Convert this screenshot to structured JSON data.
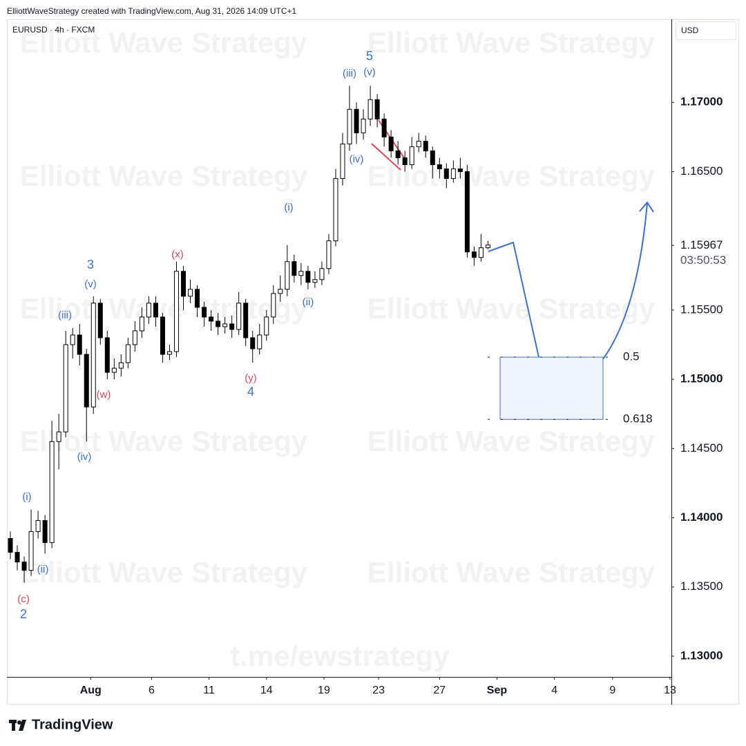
{
  "header": {
    "text": "ElliottWaveStrategy created with TradingView.com, Aug 31, 2026 14:09 UTC+1"
  },
  "footer": {
    "brand": "TradingView"
  },
  "chart_data": {
    "type": "candlestick",
    "symbol": "EURUSD · 4h · FXCM",
    "currency": "USD",
    "watermark": "Elliott Wave Strategy",
    "watermark_link": "t.me/ewstrategy",
    "up_color": "#ffffff",
    "down_color": "#000000",
    "outline_color": "#000000",
    "open": [
      1.1385,
      1.1375,
      1.1368,
      1.1362,
      1.139,
      1.1398,
      1.1382,
      1.1455,
      1.1462,
      1.1525,
      1.1532,
      1.1518,
      1.148,
      1.1555,
      1.153,
      1.1505,
      1.1508,
      1.1512,
      1.1525,
      1.1535,
      1.1545,
      1.1555,
      1.1545,
      1.1518,
      1.152,
      1.1578,
      1.156,
      1.1565,
      1.1552,
      1.1545,
      1.1542,
      1.1538,
      1.154,
      1.1536,
      1.1555,
      1.153,
      1.1522,
      1.1532,
      1.1545,
      1.1562,
      1.1565,
      1.1585,
      1.1575,
      1.1578,
      1.157,
      1.1572,
      1.158,
      1.16,
      1.1645,
      1.167,
      1.1695,
      1.1678,
      1.1688,
      1.1702,
      1.1688,
      1.1675,
      1.1665,
      1.166,
      1.1655,
      1.1668,
      1.1672,
      1.1665,
      1.1655,
      1.1652,
      1.1645,
      1.1652,
      1.165,
      1.1592,
      1.1588,
      1.1595
    ],
    "high": [
      1.139,
      1.138,
      1.1372,
      1.1406,
      1.1405,
      1.1402,
      1.147,
      1.1475,
      1.1535,
      1.1537,
      1.154,
      1.1522,
      1.156,
      1.1558,
      1.1535,
      1.1515,
      1.1518,
      1.153,
      1.1542,
      1.1552,
      1.156,
      1.156,
      1.1548,
      1.1525,
      1.1585,
      1.1582,
      1.1572,
      1.1568,
      1.1556,
      1.155,
      1.1548,
      1.1545,
      1.1546,
      1.1563,
      1.1558,
      1.1535,
      1.154,
      1.155,
      1.1568,
      1.1575,
      1.1597,
      1.159,
      1.1584,
      1.1582,
      1.1578,
      1.1585,
      1.1605,
      1.1652,
      1.1678,
      1.1712,
      1.17,
      1.1695,
      1.1712,
      1.1706,
      1.1692,
      1.168,
      1.1672,
      1.1665,
      1.1675,
      1.1678,
      1.1676,
      1.1668,
      1.166,
      1.1656,
      1.1658,
      1.166,
      1.1655,
      1.1596,
      1.1605,
      1.16
    ],
    "low": [
      1.137,
      1.1362,
      1.1353,
      1.1358,
      1.1385,
      1.1374,
      1.1378,
      1.1435,
      1.1458,
      1.1515,
      1.151,
      1.1455,
      1.1475,
      1.1525,
      1.15,
      1.15,
      1.1502,
      1.1508,
      1.152,
      1.153,
      1.154,
      1.1538,
      1.1512,
      1.1514,
      1.1516,
      1.155,
      1.1555,
      1.1545,
      1.1538,
      1.1535,
      1.1532,
      1.1533,
      1.153,
      1.1532,
      1.1524,
      1.1512,
      1.1518,
      1.1528,
      1.154,
      1.1556,
      1.156,
      1.157,
      1.1568,
      1.1565,
      1.1566,
      1.1568,
      1.1576,
      1.1596,
      1.164,
      1.1665,
      1.167,
      1.1673,
      1.1683,
      1.1682,
      1.1668,
      1.166,
      1.1655,
      1.165,
      1.1652,
      1.1664,
      1.166,
      1.1645,
      1.1645,
      1.1638,
      1.1642,
      1.1645,
      1.1588,
      1.1582,
      1.1585,
      1.1594
    ],
    "close": [
      1.1375,
      1.1368,
      1.1362,
      1.139,
      1.1398,
      1.1382,
      1.1455,
      1.1462,
      1.1525,
      1.1532,
      1.1518,
      1.148,
      1.1555,
      1.153,
      1.1505,
      1.1508,
      1.1512,
      1.1525,
      1.1535,
      1.1545,
      1.1555,
      1.1545,
      1.1518,
      1.152,
      1.1578,
      1.156,
      1.1565,
      1.1552,
      1.1545,
      1.1542,
      1.1538,
      1.154,
      1.1536,
      1.1555,
      1.153,
      1.1522,
      1.1532,
      1.1545,
      1.1562,
      1.1565,
      1.1585,
      1.1575,
      1.1578,
      1.157,
      1.1572,
      1.158,
      1.16,
      1.1645,
      1.167,
      1.1695,
      1.1678,
      1.1688,
      1.1702,
      1.1688,
      1.1675,
      1.1665,
      1.166,
      1.1655,
      1.1668,
      1.1672,
      1.1665,
      1.1655,
      1.1652,
      1.1645,
      1.1652,
      1.165,
      1.1592,
      1.1588,
      1.1595,
      1.1597
    ],
    "xlim": [
      -0.5,
      95.5
    ],
    "xticks": [
      {
        "value": 11.6,
        "label": "Aug"
      },
      {
        "value": 20.4,
        "label": "6"
      },
      {
        "value": 28.7,
        "label": "11"
      },
      {
        "value": 37.0,
        "label": "14"
      },
      {
        "value": 45.3,
        "label": "19"
      },
      {
        "value": 53.2,
        "label": "23"
      },
      {
        "value": 62.0,
        "label": "27"
      },
      {
        "value": 70.3,
        "label": "Sep"
      },
      {
        "value": 78.6,
        "label": "4"
      },
      {
        "value": 87.0,
        "label": "9"
      },
      {
        "value": 95.3,
        "label": "13"
      }
    ],
    "ylim": [
      1.1285,
      1.176
    ],
    "yticks": [
      {
        "value": 1.17,
        "label": "1.17000"
      },
      {
        "value": 1.165,
        "label": "1.16500"
      },
      {
        "value": 1.155,
        "label": "1.15500"
      },
      {
        "value": 1.15,
        "label": "1.15000"
      },
      {
        "value": 1.145,
        "label": "1.14500"
      },
      {
        "value": 1.14,
        "label": "1.14000"
      },
      {
        "value": 1.135,
        "label": "1.13500"
      },
      {
        "value": 1.13,
        "label": "1.13000"
      }
    ],
    "last_price": {
      "value": 1.15967,
      "label": "1.15967"
    },
    "countdown": "03:50:53",
    "fib_levels": [
      {
        "ratio": 0.5,
        "price": 1.1516
      },
      {
        "ratio": 0.618,
        "price": 1.1471
      }
    ],
    "fib_color": "#3b6fd8",
    "annotations": [
      {
        "text": "5",
        "color": "#3b6fd8"
      },
      {
        "text": "(v)",
        "color": "#3b6fd8"
      },
      {
        "text": "(iii)",
        "color": "#3b6fd8"
      },
      {
        "text": "(iv)",
        "color": "#3b6fd8"
      },
      {
        "text": "(i)",
        "color": "#3b6fd8"
      },
      {
        "text": "(ii)",
        "color": "#3b6fd8"
      },
      {
        "text": "(x)",
        "color": "#e0455a"
      },
      {
        "text": "(y)",
        "color": "#e0455a"
      },
      {
        "text": "4",
        "color": "#3b6fd8"
      },
      {
        "text": "3",
        "color": "#3b6fd8"
      },
      {
        "text": "(v)",
        "color": "#3b6fd8"
      },
      {
        "text": "(iii)",
        "color": "#3b6fd8"
      },
      {
        "text": "(w)",
        "color": "#e0455a"
      },
      {
        "text": "(iv)",
        "color": "#3b6fd8"
      },
      {
        "text": "(i)",
        "color": "#3b6fd8"
      },
      {
        "text": "(ii)",
        "color": "#3b6fd8"
      },
      {
        "text": "(c)",
        "color": "#e0455a"
      },
      {
        "text": "2",
        "color": "#3b6fd8"
      }
    ]
  }
}
